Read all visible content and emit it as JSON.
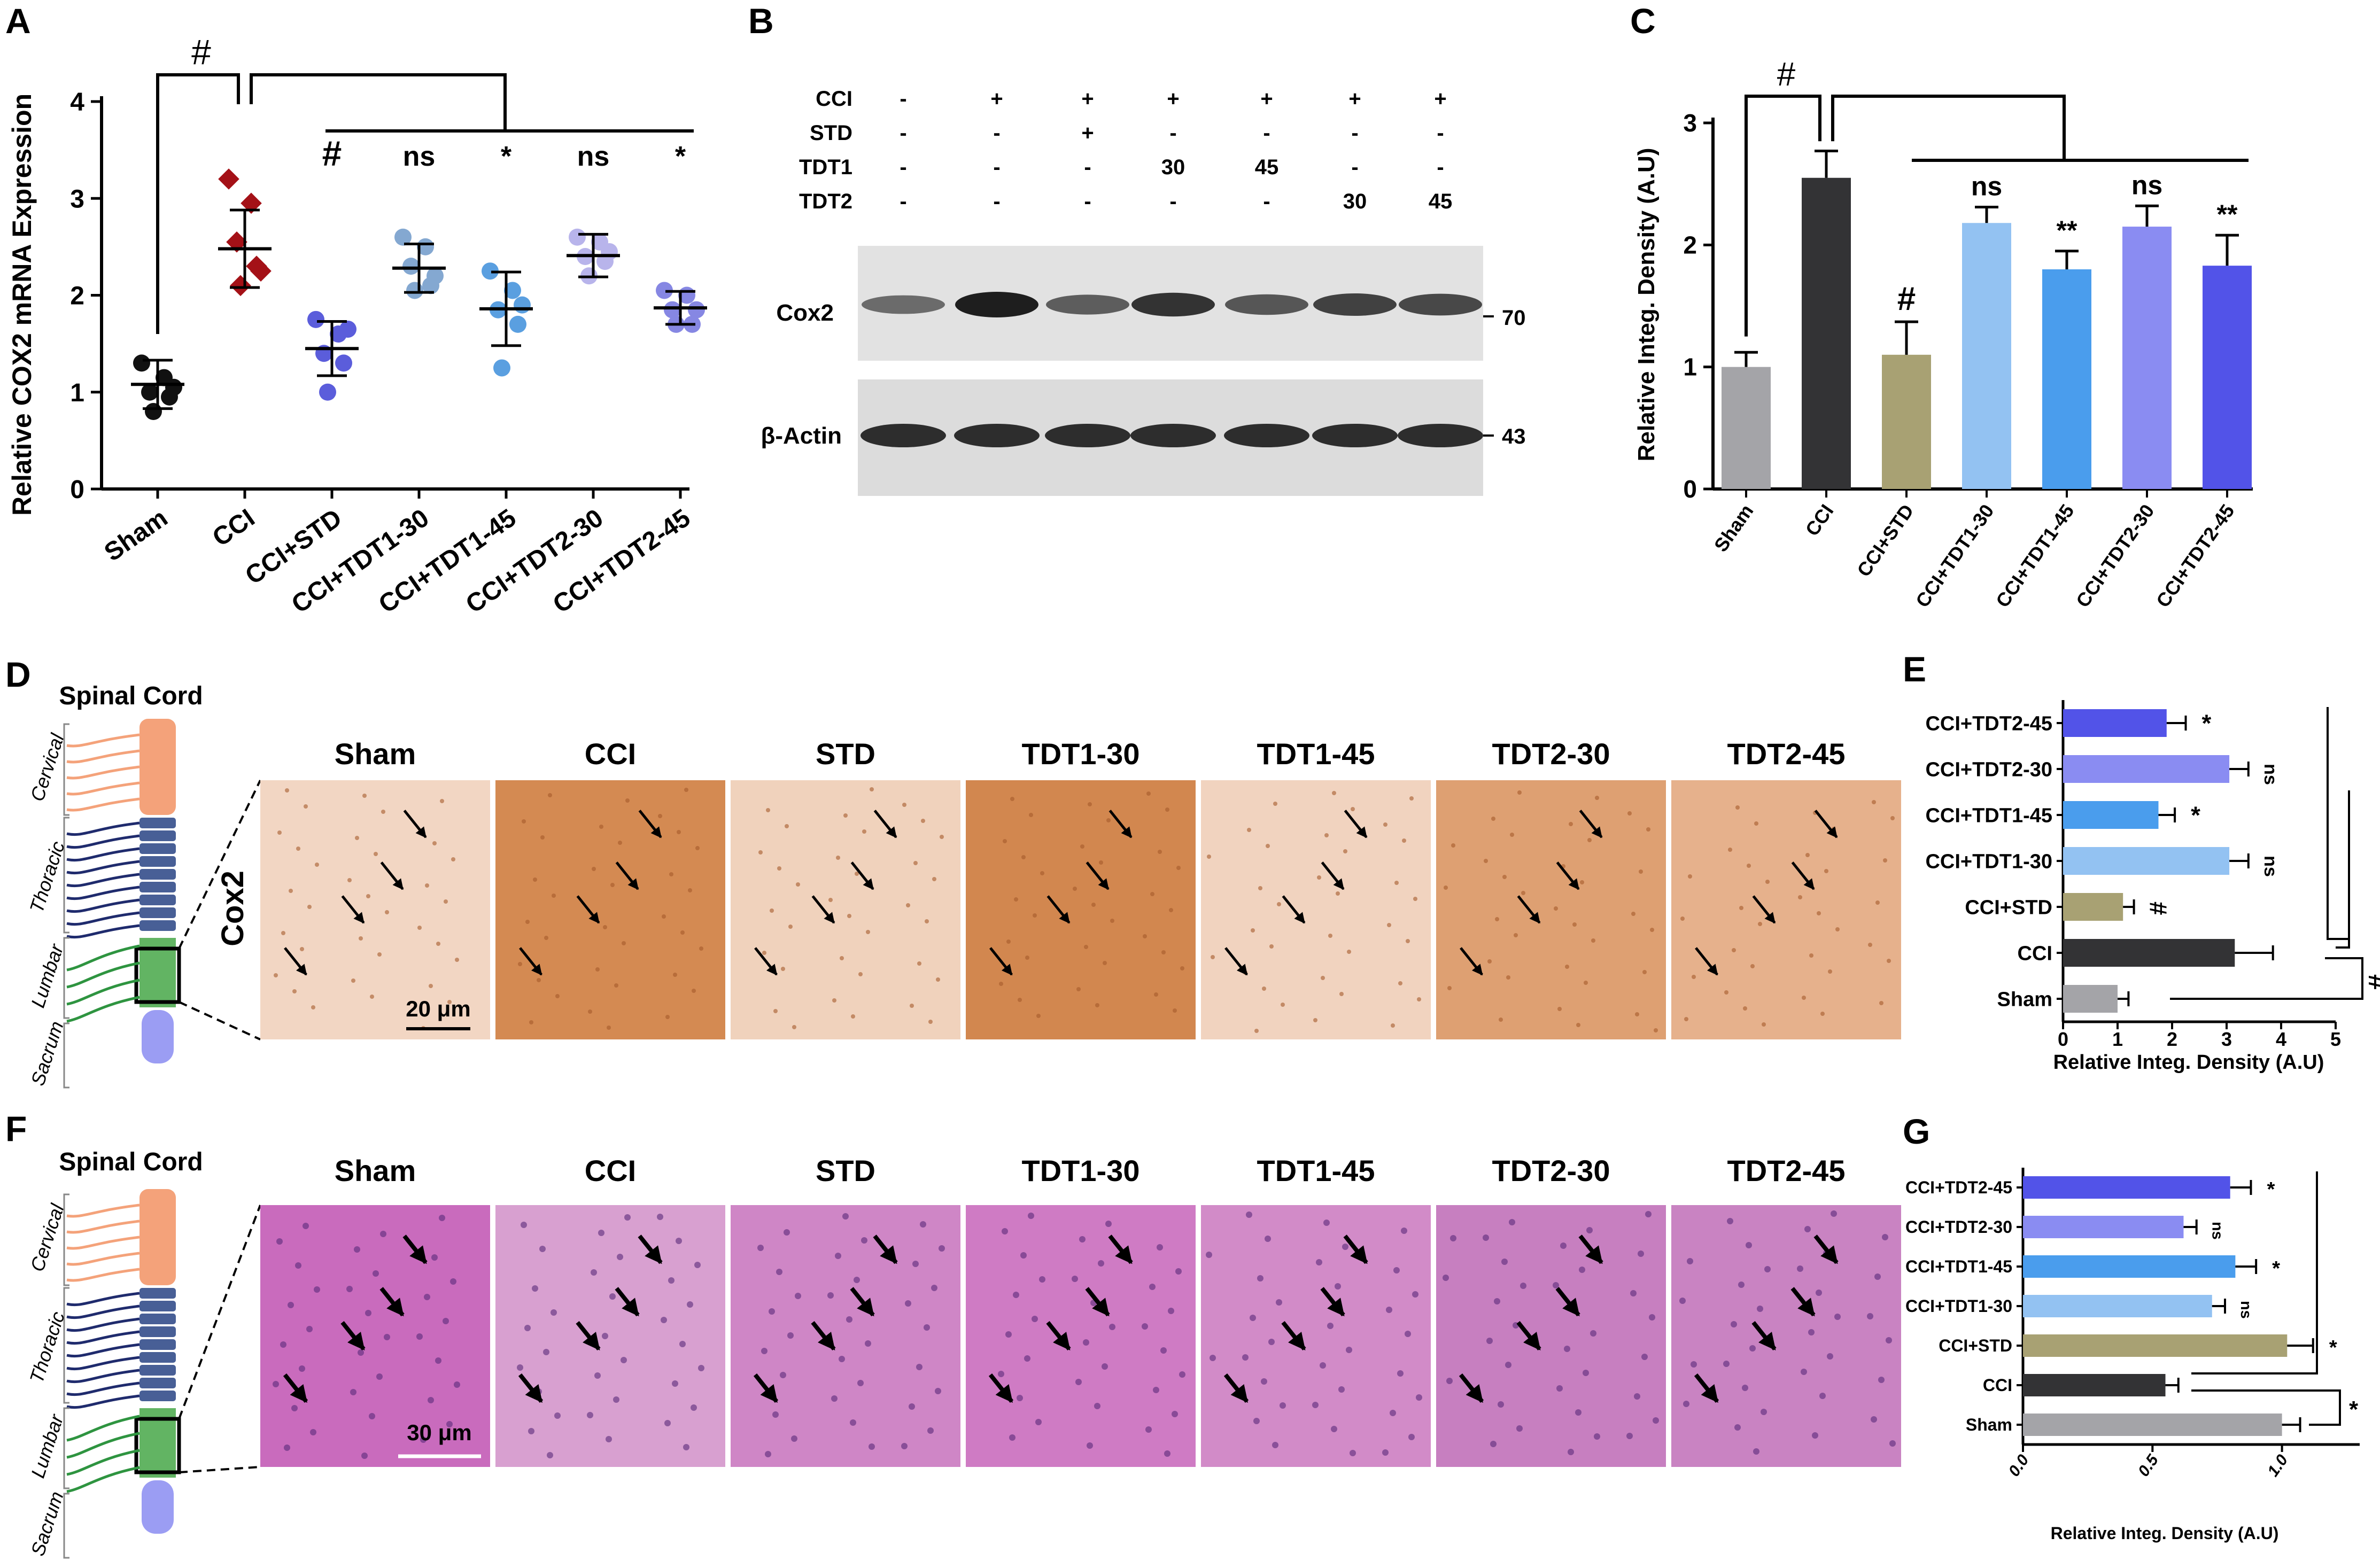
{
  "colors": {
    "sham": "#a4a4a8",
    "cci": "#333335",
    "std": "#a8a173",
    "tdt1_30": "#93c2f2",
    "tdt1_45": "#4a9ded",
    "tdt2_30": "#8a8cf2",
    "tdt2_45": "#5253e8",
    "scatterA": [
      "#111111",
      "#a41117",
      "#5b5ddb",
      "#84a8d1",
      "#5a9fe0",
      "#b8b4eb",
      "#8687e3"
    ]
  },
  "panel_letters": {
    "A": "A",
    "B": "B",
    "C": "C",
    "D": "D",
    "E": "E",
    "F": "F",
    "G": "G"
  },
  "chart_data": [
    {
      "panel": "A",
      "type": "scatter",
      "ylabel": "Relative COX2 mRNA Expression",
      "ylim": [
        0,
        4
      ],
      "yticks": [
        "0",
        "1",
        "2",
        "3",
        "4"
      ],
      "categories": [
        "Sham",
        "CCI",
        "CCI+STD",
        "CCI+TDT1-30",
        "CCI+TDT1-45",
        "CCI+TDT2-30",
        "CCI+TDT2-45"
      ],
      "points": [
        [
          1.3,
          1.15,
          1.0,
          0.95,
          0.8,
          1.05
        ],
        [
          3.2,
          2.95,
          2.55,
          2.3,
          2.1,
          2.25
        ],
        [
          1.75,
          1.6,
          1.4,
          1.3,
          1.0,
          1.65
        ],
        [
          2.6,
          2.5,
          2.3,
          2.1,
          2.05,
          2.2
        ],
        [
          2.25,
          2.05,
          1.85,
          1.7,
          1.25,
          1.9
        ],
        [
          2.6,
          2.55,
          2.4,
          2.35,
          2.2,
          2.45
        ],
        [
          2.05,
          2.0,
          1.85,
          1.7,
          1.7,
          1.85
        ]
      ],
      "means": [
        1.08,
        2.48,
        1.45,
        2.28,
        1.86,
        2.41,
        1.87
      ],
      "sd": [
        0.25,
        0.4,
        0.28,
        0.25,
        0.38,
        0.22,
        0.17
      ],
      "annotations": [
        "#",
        "#",
        "ns",
        "*",
        "ns",
        "*"
      ]
    },
    {
      "panel": "C",
      "type": "bar",
      "ylabel": "Relative Integ. Density (A.U)",
      "ylim": [
        0,
        3
      ],
      "yticks": [
        "0",
        "1",
        "2",
        "3"
      ],
      "categories": [
        "Sham",
        "CCI",
        "CCI+STD",
        "CCI+TDT1-30",
        "CCI+TDT1-45",
        "CCI+TDT2-30",
        "CCI+TDT2-45"
      ],
      "values": [
        1.0,
        2.55,
        1.1,
        2.18,
        1.8,
        2.15,
        1.83
      ],
      "errors": [
        0.12,
        0.22,
        0.27,
        0.13,
        0.15,
        0.17,
        0.25
      ],
      "annotations": [
        "#",
        "#",
        "ns",
        "**",
        "ns",
        "**"
      ]
    },
    {
      "panel": "E",
      "type": "bar",
      "orientation": "horizontal",
      "xlabel": "Relative Integ. Density (A.U)",
      "xlim": [
        0,
        5
      ],
      "xticks": [
        "0",
        "1",
        "2",
        "3",
        "4",
        "5"
      ],
      "categories": [
        "CCI+TDT2-45",
        "CCI+TDT2-30",
        "CCI+TDT1-45",
        "CCI+TDT1-30",
        "CCI+STD",
        "CCI",
        "Sham"
      ],
      "values": [
        1.9,
        3.05,
        1.75,
        3.05,
        1.1,
        3.15,
        1.0
      ],
      "errors": [
        0.35,
        0.35,
        0.3,
        0.35,
        0.2,
        0.7,
        0.2
      ],
      "annotations": [
        "*",
        "ns",
        "*",
        "ns",
        "#",
        "",
        ""
      ],
      "bracket_label": "#"
    },
    {
      "panel": "G",
      "type": "bar",
      "orientation": "horizontal",
      "xlabel": "Relative Integ. Density (A.U)",
      "xlim": [
        0,
        1.3
      ],
      "xticks": [
        "0.0",
        "0.5",
        "1.0"
      ],
      "categories": [
        "CCI+TDT2-45",
        "CCI+TDT2-30",
        "CCI+TDT1-45",
        "CCI+TDT1-30",
        "CCI+STD",
        "CCI",
        "Sham"
      ],
      "values": [
        0.8,
        0.62,
        0.82,
        0.73,
        1.02,
        0.55,
        1.0
      ],
      "errors": [
        0.08,
        0.05,
        0.08,
        0.05,
        0.1,
        0.05,
        0.07
      ],
      "annotations": [
        "*",
        "ns",
        "*",
        "ns",
        "*",
        "",
        ""
      ],
      "bracket_label": "*"
    }
  ],
  "panelB": {
    "rows": [
      {
        "label": "CCI",
        "values": [
          "-",
          "+",
          "+",
          "+",
          "+",
          "+",
          "+"
        ]
      },
      {
        "label": "STD",
        "values": [
          "-",
          "-",
          "+",
          "-",
          "-",
          "-",
          "-"
        ]
      },
      {
        "label": "TDT1",
        "values": [
          "-",
          "-",
          "-",
          "30",
          "45",
          "-",
          "-"
        ]
      },
      {
        "label": "TDT2",
        "values": [
          "-",
          "-",
          "-",
          "-",
          "-",
          "30",
          "45"
        ]
      }
    ],
    "blot1_label": "Cox2",
    "blot1_marker": "70",
    "blot2_label": "β-Actin",
    "blot2_marker": "43",
    "cox2_intensity": [
      0.45,
      1.0,
      0.55,
      0.85,
      0.6,
      0.75,
      0.7
    ]
  },
  "panelD": {
    "title": "Spinal Cord",
    "regions": [
      "Cervical",
      "Thoracic",
      "Lumbar",
      "Sacrum"
    ],
    "stain": "Cox2",
    "scalebar": "20 μm",
    "groups": [
      "Sham",
      "CCI",
      "STD",
      "TDT1-30",
      "TDT1-45",
      "TDT2-30",
      "TDT2-45"
    ],
    "tints": [
      "#f2d6c3",
      "#d48a52",
      "#f0d2bc",
      "#d2874f",
      "#f1d3bf",
      "#dea072",
      "#e6b18c"
    ]
  },
  "panelF": {
    "title": "Spinal Cord",
    "regions": [
      "Cervical",
      "Thoracic",
      "Lumbar",
      "Sacrum"
    ],
    "scalebar": "30 μm",
    "groups": [
      "Sham",
      "CCI",
      "STD",
      "TDT1-30",
      "TDT1-45",
      "TDT2-30",
      "TDT2-45"
    ],
    "tints": [
      "#c96bbd",
      "#d8a0d0",
      "#cf86c6",
      "#cf7bc4",
      "#d28bc8",
      "#c77fc0",
      "#c983c2"
    ]
  }
}
